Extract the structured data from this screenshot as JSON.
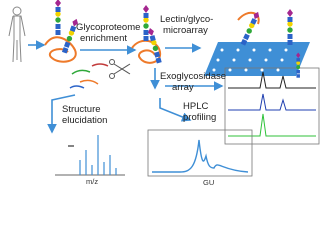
{
  "labels": {
    "enrichment": [
      "Glycoproteome",
      "enrichment"
    ],
    "microarray": [
      "Lectin/glyco-",
      "microarray"
    ],
    "exoglycosidase": [
      "Exoglycosidase",
      "array"
    ],
    "structure": [
      "Structure",
      "elucidation"
    ],
    "hplc": [
      "HPLC",
      "profiling"
    ],
    "ms_axis": "m/z",
    "hplc_axis": "GU"
  }
}
